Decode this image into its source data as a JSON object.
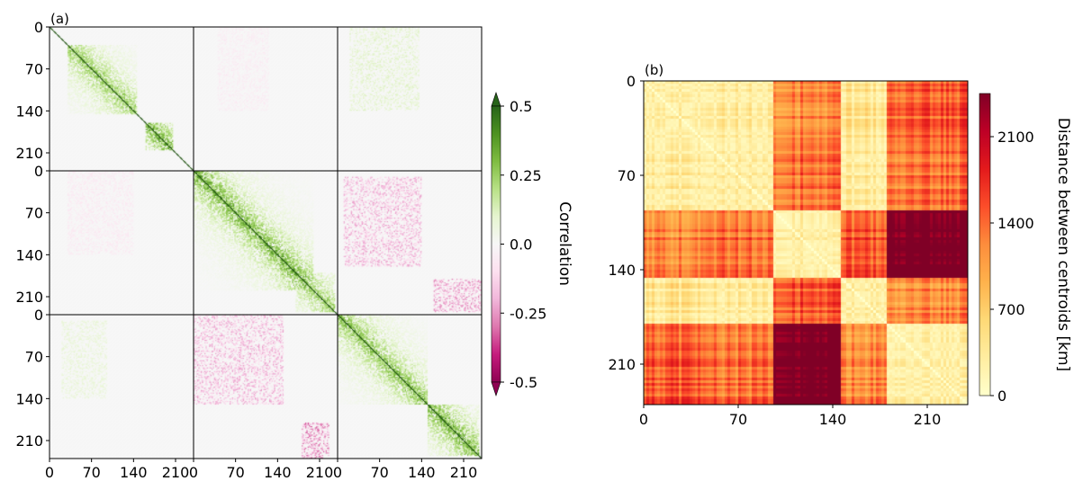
{
  "chart_data": [
    {
      "type": "heatmap",
      "panel_label": "(a)",
      "title": "",
      "blocks": 3,
      "block_size": 240,
      "x_tick_values": [
        0,
        70,
        140,
        210
      ],
      "y_tick_values": [
        0,
        70,
        140,
        210
      ],
      "x_tick_labels": [
        "0",
        "70",
        "140",
        "210"
      ],
      "y_tick_labels": [
        "0",
        "70",
        "140",
        "210"
      ],
      "colorbar": {
        "label": "Correlation",
        "range": [
          -0.5,
          0.5
        ],
        "tick_values": [
          0.5,
          0.25,
          0.0,
          -0.25,
          -0.5
        ],
        "tick_labels": [
          "0.5",
          "0.25",
          "0.0",
          "-0.25",
          "-0.5"
        ],
        "extend": "both",
        "colormap": "PiYG",
        "colors": [
          "#8e0152",
          "#c51b7d",
          "#de77ae",
          "#f1b6da",
          "#fde0ef",
          "#f7f7f7",
          "#e6f5d0",
          "#b8e186",
          "#7fbc41",
          "#4d9221",
          "#276419"
        ]
      },
      "diagonal_blocks": [
        {
          "row": 0,
          "col": 0,
          "sign": 1,
          "strength": 0.9,
          "clusters": [
            [
              30,
              145,
              0.8
            ],
            [
              160,
              205,
              1.0
            ]
          ]
        },
        {
          "row": 1,
          "col": 1,
          "sign": 1,
          "strength": 1.0,
          "clusters": [
            [
              0,
              200,
              0.9
            ],
            [
              170,
              235,
              0.7
            ]
          ]
        },
        {
          "row": 2,
          "col": 2,
          "sign": 1,
          "strength": 1.0,
          "clusters": [
            [
              0,
              150,
              0.8
            ],
            [
              150,
              235,
              0.9
            ]
          ]
        }
      ],
      "off_diagonal_blocks": [
        {
          "row": 0,
          "col": 1,
          "sign": -1,
          "strength": 0.12,
          "region": [
            0,
            140,
            40,
            125
          ]
        },
        {
          "row": 0,
          "col": 2,
          "sign": 1,
          "strength": 0.25,
          "region": [
            0,
            140,
            20,
            135
          ]
        },
        {
          "row": 1,
          "col": 0,
          "sign": -1,
          "strength": 0.15,
          "region": [
            0,
            140,
            30,
            140
          ]
        },
        {
          "row": 1,
          "col": 2,
          "sign": -1,
          "strength": 0.5,
          "region": [
            10,
            160,
            10,
            140
          ]
        },
        {
          "row": 1,
          "col": 2,
          "sign": -1,
          "strength": 0.6,
          "region": [
            180,
            235,
            160,
            240
          ]
        },
        {
          "row": 2,
          "col": 0,
          "sign": 1,
          "strength": 0.2,
          "region": [
            10,
            140,
            20,
            95
          ]
        },
        {
          "row": 2,
          "col": 1,
          "sign": -1,
          "strength": 0.5,
          "region": [
            0,
            150,
            0,
            150
          ]
        },
        {
          "row": 2,
          "col": 1,
          "sign": -1,
          "strength": 0.7,
          "region": [
            180,
            240,
            180,
            225
          ]
        }
      ]
    },
    {
      "type": "heatmap",
      "panel_label": "(b)",
      "title": "",
      "n": 240,
      "x_tick_values": [
        0,
        70,
        140,
        210
      ],
      "y_tick_values": [
        0,
        70,
        140,
        210
      ],
      "x_tick_labels": [
        "0",
        "70",
        "140",
        "210"
      ],
      "y_tick_labels": [
        "0",
        "70",
        "140",
        "210"
      ],
      "cluster_groups": [
        {
          "range": [
            0,
            45
          ],
          "center": 0.45
        },
        {
          "range": [
            45,
            95
          ],
          "center": 0.5
        },
        {
          "range": [
            95,
            145
          ],
          "center": 0.0
        },
        {
          "range": [
            145,
            180
          ],
          "center": 0.55
        },
        {
          "range": [
            180,
            240
          ],
          "center": 1.0
        }
      ],
      "colorbar": {
        "label": "Distance between centroids [km]",
        "range": [
          0,
          2450
        ],
        "tick_values": [
          0,
          700,
          1400,
          2100
        ],
        "tick_labels": [
          "0",
          "700",
          "1400",
          "2100"
        ],
        "colormap": "YlOrRd",
        "colors": [
          "#ffffcc",
          "#ffeda0",
          "#fed976",
          "#feb24c",
          "#fd8d3c",
          "#fc4e2a",
          "#e31a1c",
          "#bd0026",
          "#800026"
        ]
      }
    }
  ]
}
